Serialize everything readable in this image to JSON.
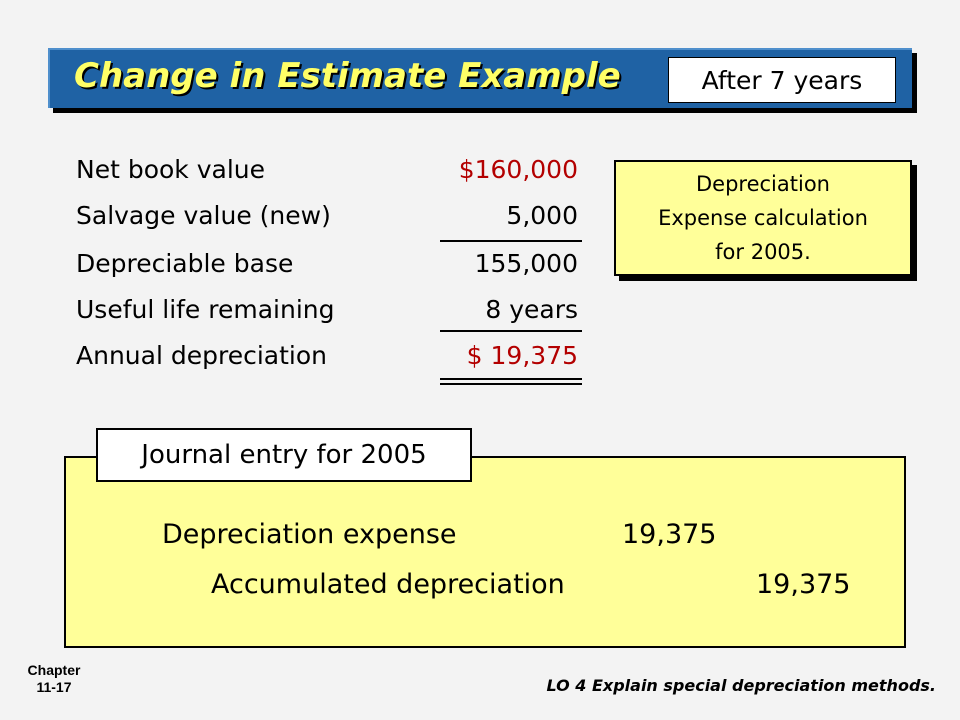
{
  "title": "Change in Estimate Example",
  "badge": "After 7 years",
  "calc": {
    "rows": [
      {
        "label": "Net book value",
        "value": "$160,000"
      },
      {
        "label": "Salvage value (new)",
        "value": "5,000"
      },
      {
        "label": "Depreciable base",
        "value": "155,000"
      },
      {
        "label": "Useful life remaining",
        "value": "8 years"
      },
      {
        "label": "Annual depreciation",
        "value": "$ 19,375"
      }
    ]
  },
  "note": {
    "line1": "Depreciation",
    "line2": "Expense calculation",
    "line3": "for 2005."
  },
  "journal": {
    "label": "Journal entry for 2005",
    "debit_account": "Depreciation expense",
    "debit_amount": "19,375",
    "credit_account": "Accumulated depreciation",
    "credit_amount": "19,375"
  },
  "footer": {
    "chapter_label": "Chapter",
    "chapter_number": "11-17",
    "objective": "LO 4 Explain special depreciation methods."
  },
  "colors": {
    "title_bar": "#1f62a4",
    "title_text": "#ffff66",
    "accent_red": "#b30000",
    "note_fill": "#ffff99"
  }
}
